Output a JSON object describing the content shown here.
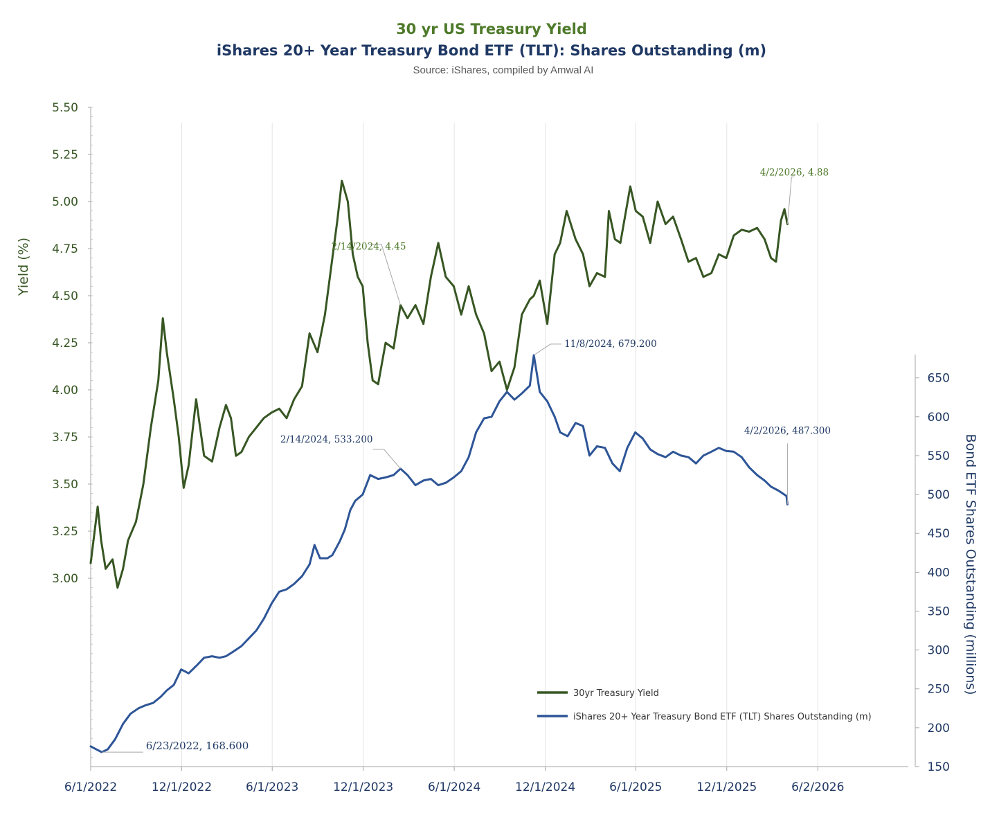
{
  "chart_data": {
    "type": "line",
    "title": "30 yr US Treasury Yield",
    "subtitle": "iShares 20+ Year Treasury Bond ETF (TLT): Shares Outstanding (m)",
    "source": "Source: iShares, compiled by Amwal AI",
    "x_ticks": [
      "6/1/2022",
      "12/1/2022",
      "6/1/2023",
      "12/1/2023",
      "6/1/2024",
      "12/1/2024",
      "6/1/2025",
      "12/1/2025",
      "6/2/2026"
    ],
    "x_range": [
      "6/1/2022",
      "12/1/2026"
    ],
    "ylabel_left": "Yield (%)",
    "ylabel_right": "Bond ETF Shares Outstanding (millions)",
    "ylim_left": [
      2.0,
      5.5
    ],
    "ylim_right": [
      150,
      680
    ],
    "yticks_left": [
      "5.50",
      "5.25",
      "5.00",
      "4.75",
      "4.50",
      "4.25",
      "4.00",
      "3.75",
      "3.50",
      "3.25",
      "3.00"
    ],
    "yticks_right": [
      "650",
      "600",
      "550",
      "500",
      "450",
      "400",
      "350",
      "300",
      "250",
      "200",
      "150"
    ],
    "colors": {
      "yield": "#375623",
      "shares": "#2e5597",
      "annotation_green": "#4e7a2a",
      "annotation_blue": "#1f3864",
      "leader": "#a6a6a6"
    },
    "legend_position": "bottom-center",
    "series": [
      {
        "name": "30yr Treasury Yield",
        "axis": "left",
        "points": [
          [
            "6/1/2022",
            3.08
          ],
          [
            "6/15/2022",
            3.38
          ],
          [
            "6/22/2022",
            3.2
          ],
          [
            "7/1/2022",
            3.05
          ],
          [
            "7/15/2022",
            3.1
          ],
          [
            "7/25/2022",
            2.95
          ],
          [
            "8/5/2022",
            3.05
          ],
          [
            "8/15/2022",
            3.2
          ],
          [
            "8/31/2022",
            3.3
          ],
          [
            "9/15/2022",
            3.5
          ],
          [
            "9/30/2022",
            3.8
          ],
          [
            "10/15/2022",
            4.05
          ],
          [
            "10/24/2022",
            4.38
          ],
          [
            "11/1/2022",
            4.2
          ],
          [
            "11/15/2022",
            3.95
          ],
          [
            "11/25/2022",
            3.75
          ],
          [
            "12/5/2022",
            3.48
          ],
          [
            "12/15/2022",
            3.6
          ],
          [
            "12/30/2022",
            3.95
          ],
          [
            "1/15/2023",
            3.65
          ],
          [
            "1/31/2023",
            3.62
          ],
          [
            "2/15/2023",
            3.8
          ],
          [
            "2/28/2023",
            3.92
          ],
          [
            "3/10/2023",
            3.85
          ],
          [
            "3/20/2023",
            3.65
          ],
          [
            "3/31/2023",
            3.67
          ],
          [
            "4/15/2023",
            3.75
          ],
          [
            "4/30/2023",
            3.8
          ],
          [
            "5/15/2023",
            3.85
          ],
          [
            "5/31/2023",
            3.88
          ],
          [
            "6/15/2023",
            3.9
          ],
          [
            "6/30/2023",
            3.85
          ],
          [
            "7/15/2023",
            3.95
          ],
          [
            "7/31/2023",
            4.02
          ],
          [
            "8/15/2023",
            4.3
          ],
          [
            "8/31/2023",
            4.2
          ],
          [
            "9/15/2023",
            4.4
          ],
          [
            "9/30/2023",
            4.7
          ],
          [
            "10/10/2023",
            4.9
          ],
          [
            "10/19/2023",
            5.11
          ],
          [
            "10/31/2023",
            5.0
          ],
          [
            "11/10/2023",
            4.72
          ],
          [
            "11/20/2023",
            4.6
          ],
          [
            "11/30/2023",
            4.55
          ],
          [
            "12/10/2023",
            4.25
          ],
          [
            "12/20/2023",
            4.05
          ],
          [
            "12/31/2023",
            4.03
          ],
          [
            "1/15/2024",
            4.25
          ],
          [
            "1/31/2024",
            4.22
          ],
          [
            "2/14/2024",
            4.45
          ],
          [
            "2/28/2024",
            4.38
          ],
          [
            "3/15/2024",
            4.45
          ],
          [
            "3/31/2024",
            4.35
          ],
          [
            "4/15/2024",
            4.6
          ],
          [
            "4/30/2024",
            4.78
          ],
          [
            "5/15/2024",
            4.6
          ],
          [
            "5/31/2024",
            4.55
          ],
          [
            "6/15/2024",
            4.4
          ],
          [
            "6/30/2024",
            4.55
          ],
          [
            "7/15/2024",
            4.4
          ],
          [
            "7/31/2024",
            4.3
          ],
          [
            "8/15/2024",
            4.1
          ],
          [
            "8/31/2024",
            4.15
          ],
          [
            "9/15/2024",
            4.0
          ],
          [
            "9/30/2024",
            4.12
          ],
          [
            "10/15/2024",
            4.4
          ],
          [
            "10/31/2024",
            4.48
          ],
          [
            "11/8/2024",
            4.5
          ],
          [
            "11/20/2024",
            4.58
          ],
          [
            "12/5/2024",
            4.35
          ],
          [
            "12/20/2024",
            4.72
          ],
          [
            "12/31/2024",
            4.78
          ],
          [
            "1/13/2025",
            4.95
          ],
          [
            "1/31/2025",
            4.8
          ],
          [
            "2/15/2025",
            4.72
          ],
          [
            "2/28/2025",
            4.55
          ],
          [
            "3/15/2025",
            4.62
          ],
          [
            "3/31/2025",
            4.6
          ],
          [
            "4/8/2025",
            4.95
          ],
          [
            "4/20/2025",
            4.8
          ],
          [
            "5/1/2025",
            4.78
          ],
          [
            "5/21/2025",
            5.08
          ],
          [
            "6/1/2025",
            4.95
          ],
          [
            "6/15/2025",
            4.92
          ],
          [
            "6/30/2025",
            4.78
          ],
          [
            "7/15/2025",
            5.0
          ],
          [
            "7/31/2025",
            4.88
          ],
          [
            "8/15/2025",
            4.92
          ],
          [
            "8/31/2025",
            4.8
          ],
          [
            "9/15/2025",
            4.68
          ],
          [
            "9/30/2025",
            4.7
          ],
          [
            "10/15/2025",
            4.6
          ],
          [
            "10/31/2025",
            4.62
          ],
          [
            "11/15/2025",
            4.72
          ],
          [
            "11/30/2025",
            4.7
          ],
          [
            "12/15/2025",
            4.82
          ],
          [
            "12/31/2025",
            4.85
          ],
          [
            "1/15/2026",
            4.84
          ],
          [
            "1/31/2026",
            4.86
          ],
          [
            "2/15/2026",
            4.8
          ],
          [
            "2/28/2026",
            4.7
          ],
          [
            "3/10/2026",
            4.68
          ],
          [
            "3/20/2026",
            4.9
          ],
          [
            "3/27/2026",
            4.96
          ],
          [
            "4/2/2026",
            4.88
          ]
        ]
      },
      {
        "name": "iShares 20+ Year Treasury Bond ETF (TLT) Shares Outstanding (m)",
        "axis": "right",
        "points": [
          [
            "6/1/2022",
            176
          ],
          [
            "6/23/2022",
            168.6
          ],
          [
            "7/5/2022",
            172
          ],
          [
            "7/20/2022",
            185
          ],
          [
            "8/5/2022",
            205
          ],
          [
            "8/20/2022",
            218
          ],
          [
            "9/5/2022",
            225
          ],
          [
            "9/20/2022",
            229
          ],
          [
            "10/5/2022",
            232
          ],
          [
            "10/20/2022",
            240
          ],
          [
            "11/1/2022",
            248
          ],
          [
            "11/15/2022",
            255
          ],
          [
            "11/30/2022",
            275
          ],
          [
            "12/15/2022",
            270
          ],
          [
            "12/31/2022",
            280
          ],
          [
            "1/15/2023",
            290
          ],
          [
            "1/31/2023",
            292
          ],
          [
            "2/15/2023",
            290
          ],
          [
            "2/28/2023",
            292
          ],
          [
            "3/15/2023",
            298
          ],
          [
            "3/31/2023",
            305
          ],
          [
            "4/15/2023",
            315
          ],
          [
            "4/30/2023",
            325
          ],
          [
            "5/15/2023",
            340
          ],
          [
            "5/31/2023",
            360
          ],
          [
            "6/15/2023",
            375
          ],
          [
            "6/30/2023",
            378
          ],
          [
            "7/15/2023",
            385
          ],
          [
            "7/31/2023",
            395
          ],
          [
            "8/15/2023",
            410
          ],
          [
            "8/25/2023",
            435
          ],
          [
            "9/5/2023",
            418
          ],
          [
            "9/20/2023",
            418
          ],
          [
            "9/30/2023",
            422
          ],
          [
            "10/15/2023",
            440
          ],
          [
            "10/25/2023",
            455
          ],
          [
            "11/5/2023",
            480
          ],
          [
            "11/15/2023",
            492
          ],
          [
            "11/30/2023",
            500
          ],
          [
            "12/15/2023",
            525
          ],
          [
            "12/31/2023",
            520
          ],
          [
            "1/15/2024",
            522
          ],
          [
            "1/31/2024",
            525
          ],
          [
            "2/14/2024",
            533.2
          ],
          [
            "2/28/2024",
            525
          ],
          [
            "3/15/2024",
            512
          ],
          [
            "3/31/2024",
            518
          ],
          [
            "4/15/2024",
            520
          ],
          [
            "4/30/2024",
            512
          ],
          [
            "5/15/2024",
            515
          ],
          [
            "5/31/2024",
            522
          ],
          [
            "6/15/2024",
            530
          ],
          [
            "6/30/2024",
            548
          ],
          [
            "7/15/2024",
            580
          ],
          [
            "7/31/2024",
            598
          ],
          [
            "8/15/2024",
            600
          ],
          [
            "8/31/2024",
            620
          ],
          [
            "9/15/2024",
            632
          ],
          [
            "9/30/2024",
            622
          ],
          [
            "10/15/2024",
            630
          ],
          [
            "10/31/2024",
            640
          ],
          [
            "11/8/2024",
            679.2
          ],
          [
            "11/20/2024",
            632
          ],
          [
            "12/5/2024",
            620
          ],
          [
            "12/20/2024",
            600
          ],
          [
            "12/31/2024",
            580
          ],
          [
            "1/15/2025",
            575
          ],
          [
            "1/31/2025",
            592
          ],
          [
            "2/15/2025",
            588
          ],
          [
            "2/28/2025",
            550
          ],
          [
            "3/15/2025",
            562
          ],
          [
            "3/31/2025",
            560
          ],
          [
            "4/15/2025",
            540
          ],
          [
            "4/30/2025",
            530
          ],
          [
            "5/15/2025",
            560
          ],
          [
            "5/31/2025",
            580
          ],
          [
            "6/15/2025",
            572
          ],
          [
            "6/30/2025",
            558
          ],
          [
            "7/15/2025",
            552
          ],
          [
            "7/31/2025",
            548
          ],
          [
            "8/15/2025",
            555
          ],
          [
            "8/31/2025",
            550
          ],
          [
            "9/15/2025",
            548
          ],
          [
            "9/30/2025",
            540
          ],
          [
            "10/15/2025",
            550
          ],
          [
            "10/31/2025",
            555
          ],
          [
            "11/15/2025",
            560
          ],
          [
            "11/30/2025",
            556
          ],
          [
            "12/15/2025",
            555
          ],
          [
            "12/31/2025",
            548
          ],
          [
            "1/15/2026",
            535
          ],
          [
            "1/31/2026",
            525
          ],
          [
            "2/15/2026",
            518
          ],
          [
            "2/28/2026",
            510
          ],
          [
            "3/15/2026",
            505
          ],
          [
            "3/31/2026",
            498
          ],
          [
            "4/2/2026",
            487.3
          ]
        ]
      }
    ],
    "annotations": [
      {
        "series": 0,
        "date": "2/14/2024",
        "value": 4.45,
        "label": "2/14/2024, 4.45"
      },
      {
        "series": 0,
        "date": "4/2/2026",
        "value": 4.88,
        "label": "4/2/2026, 4.88"
      },
      {
        "series": 1,
        "date": "6/23/2022",
        "value": 168.6,
        "label": "6/23/2022, 168.600"
      },
      {
        "series": 1,
        "date": "2/14/2024",
        "value": 533.2,
        "label": "2/14/2024, 533.200"
      },
      {
        "series": 1,
        "date": "11/8/2024",
        "value": 679.2,
        "label": "11/8/2024, 679.200"
      },
      {
        "series": 1,
        "date": "4/2/2026",
        "value": 487.3,
        "label": "4/2/2026, 487.300"
      }
    ],
    "legend": [
      "30yr Treasury Yield",
      "iShares 20+ Year Treasury Bond ETF (TLT) Shares Outstanding (m)"
    ]
  }
}
